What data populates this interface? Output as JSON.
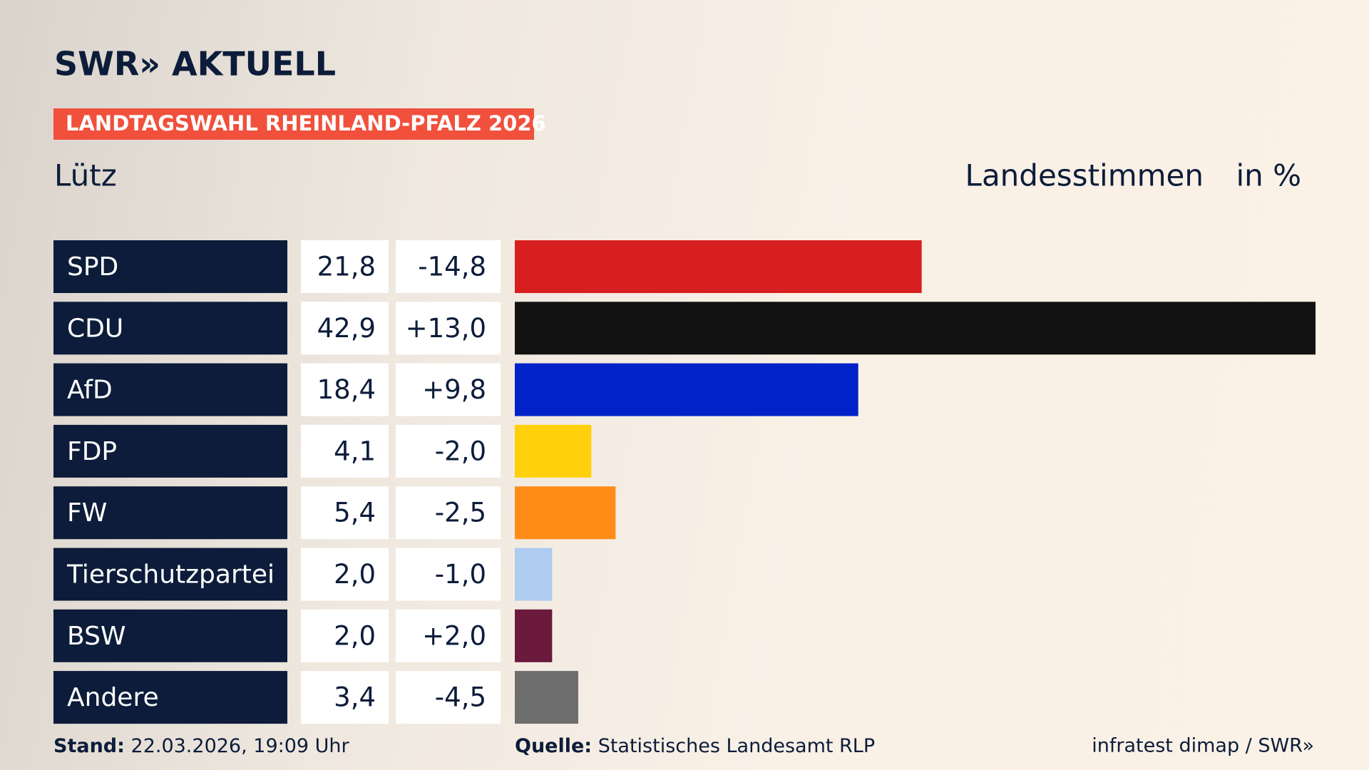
{
  "header": {
    "logo": "SWR» AKTUELL",
    "banner": "LANDTAGSWAHL RHEINLAND-PFALZ 2026"
  },
  "chart_data": {
    "type": "bar",
    "title": "Lütz",
    "subtitle": "Landesstimmen",
    "unit": "in %",
    "categories": [
      "SPD",
      "CDU",
      "AfD",
      "FDP",
      "FW",
      "Tierschutzpartei",
      "BSW",
      "Andere"
    ],
    "values": [
      21.8,
      42.9,
      18.4,
      4.1,
      5.4,
      2.0,
      2.0,
      3.4
    ],
    "value_labels": [
      "21,8",
      "42,9",
      "18,4",
      "4,1",
      "5,4",
      "2,0",
      "2,0",
      "3,4"
    ],
    "changes": [
      -14.8,
      13.0,
      9.8,
      -2.0,
      -2.5,
      -1.0,
      2.0,
      -4.5
    ],
    "change_labels": [
      "-14,8",
      "+13,0",
      "+9,8",
      "-2,0",
      "-2,5",
      "-1,0",
      "+2,0",
      "-4,5"
    ],
    "colors": [
      "#d71f1f",
      "#121212",
      "#0022c8",
      "#ffd00b",
      "#ff8c17",
      "#aecbf0",
      "#6b1a3c",
      "#6e6e6e"
    ]
  },
  "footer": {
    "stand_label": "Stand:",
    "stand": "22.03.2026, 19:09 Uhr",
    "source_label": "Quelle:",
    "source": "Statistisches Landesamt RLP",
    "credit": "infratest dimap / SWR»"
  }
}
